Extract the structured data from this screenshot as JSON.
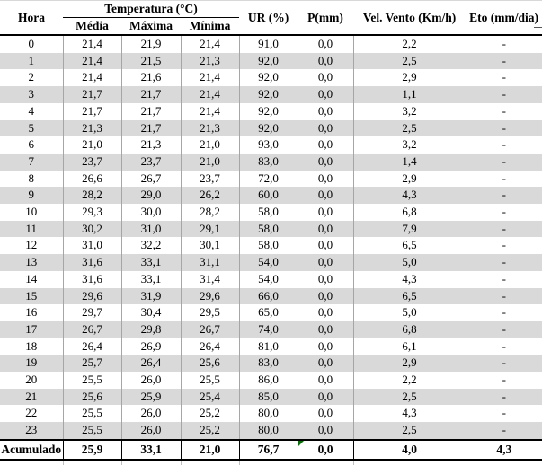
{
  "table": {
    "header": {
      "hora": "Hora",
      "temperatura_group": "Temperatura (°C)",
      "media": "Média",
      "maxima": "Máxima",
      "minima": "Mínima",
      "ur": "UR (%)",
      "p": "P(mm)",
      "vento": "Vel. Vento (Km/h)",
      "eto": "Eto (mm/dia)"
    },
    "rows": [
      [
        "0",
        "21,4",
        "21,9",
        "21,4",
        "91,0",
        "0,0",
        "2,2",
        "-"
      ],
      [
        "1",
        "21,4",
        "21,5",
        "21,3",
        "92,0",
        "0,0",
        "2,5",
        "-"
      ],
      [
        "2",
        "21,4",
        "21,6",
        "21,4",
        "92,0",
        "0,0",
        "2,9",
        "-"
      ],
      [
        "3",
        "21,7",
        "21,7",
        "21,4",
        "92,0",
        "0,0",
        "1,1",
        "-"
      ],
      [
        "4",
        "21,7",
        "21,7",
        "21,4",
        "92,0",
        "0,0",
        "3,2",
        "-"
      ],
      [
        "5",
        "21,3",
        "21,7",
        "21,3",
        "92,0",
        "0,0",
        "2,5",
        "-"
      ],
      [
        "6",
        "21,0",
        "21,3",
        "21,0",
        "93,0",
        "0,0",
        "3,2",
        "-"
      ],
      [
        "7",
        "23,7",
        "23,7",
        "21,0",
        "83,0",
        "0,0",
        "1,4",
        "-"
      ],
      [
        "8",
        "26,6",
        "26,7",
        "23,7",
        "72,0",
        "0,0",
        "2,9",
        "-"
      ],
      [
        "9",
        "28,2",
        "29,0",
        "26,2",
        "60,0",
        "0,0",
        "4,3",
        "-"
      ],
      [
        "10",
        "29,3",
        "30,0",
        "28,2",
        "58,0",
        "0,0",
        "6,8",
        "-"
      ],
      [
        "11",
        "30,2",
        "31,0",
        "29,1",
        "58,0",
        "0,0",
        "7,9",
        "-"
      ],
      [
        "12",
        "31,0",
        "32,2",
        "30,1",
        "58,0",
        "0,0",
        "6,5",
        "-"
      ],
      [
        "13",
        "31,6",
        "33,1",
        "31,1",
        "54,0",
        "0,0",
        "5,0",
        "-"
      ],
      [
        "14",
        "31,6",
        "33,1",
        "31,4",
        "54,0",
        "0,0",
        "4,3",
        "-"
      ],
      [
        "15",
        "29,6",
        "31,9",
        "29,6",
        "66,0",
        "0,0",
        "6,5",
        "-"
      ],
      [
        "16",
        "29,7",
        "30,4",
        "29,5",
        "65,0",
        "0,0",
        "5,0",
        "-"
      ],
      [
        "17",
        "26,7",
        "29,8",
        "26,7",
        "74,0",
        "0,0",
        "6,8",
        "-"
      ],
      [
        "18",
        "26,4",
        "26,9",
        "26,4",
        "81,0",
        "0,0",
        "6,1",
        "-"
      ],
      [
        "19",
        "25,7",
        "26,4",
        "25,6",
        "83,0",
        "0,0",
        "2,9",
        "-"
      ],
      [
        "20",
        "25,5",
        "26,0",
        "25,5",
        "86,0",
        "0,0",
        "2,2",
        "-"
      ],
      [
        "21",
        "25,6",
        "25,9",
        "25,4",
        "85,0",
        "0,0",
        "2,5",
        "-"
      ],
      [
        "22",
        "25,5",
        "26,0",
        "25,2",
        "80,0",
        "0,0",
        "4,3",
        "-"
      ],
      [
        "23",
        "25,5",
        "26,0",
        "25,2",
        "80,0",
        "0,0",
        "2,5",
        "-"
      ]
    ],
    "footer": {
      "label": "Acumulado",
      "media": "25,9",
      "maxima": "33,1",
      "minima": "21,0",
      "ur": "76,7",
      "p": "0,0",
      "vento": "4,0",
      "eto": "4,3"
    }
  },
  "colors": {
    "stripe": "#d9d9d9",
    "grid_light": "#a6a6a6",
    "border_dark": "#000000",
    "flag_green": "#0b6e0b"
  }
}
